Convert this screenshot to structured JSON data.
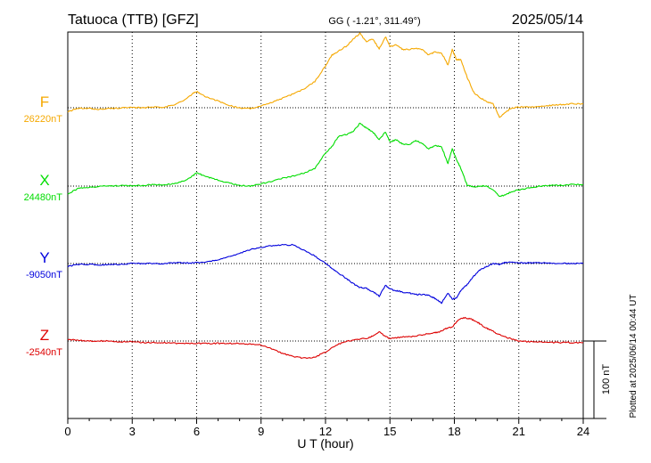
{
  "chart_data": {
    "type": "line",
    "title": "Tatuoca (TTB)  [GFZ]",
    "coords": "GG ( -1.21°, 311.49°)",
    "date": "2025/05/14",
    "xlabel": "U T (hour)",
    "xlim": [
      0,
      24
    ],
    "xticks": [
      "0",
      "3",
      "6",
      "9",
      "12",
      "15",
      "18",
      "21",
      "24"
    ],
    "scale_bar_label": "100 nT",
    "scale_bar_nT": 100,
    "plotted_note": "Plotted at 2025/06/14 00:44 UT",
    "grid": "dotted",
    "series": [
      {
        "name": "F",
        "baseline_label": "26220nT",
        "baseline_nT": 26220,
        "color": "#f5a800",
        "t": [
          0,
          0.5,
          1,
          1.5,
          2,
          2.5,
          3,
          3.5,
          4,
          4.5,
          5,
          5.5,
          5.8,
          6,
          6.3,
          6.6,
          7,
          7.5,
          8,
          8.5,
          9,
          9.5,
          10,
          10.5,
          11,
          11.5,
          12,
          12.3,
          12.6,
          13,
          13.3,
          13.6,
          13.9,
          14.2,
          14.5,
          14.8,
          15,
          15.3,
          15.6,
          15.9,
          16.2,
          16.5,
          16.8,
          17.1,
          17.4,
          17.7,
          17.9,
          18.1,
          18.3,
          18.6,
          18.9,
          19.2,
          19.5,
          19.8,
          20.1,
          20.3,
          20.6,
          21,
          21.5,
          22,
          22.5,
          23,
          23.5,
          24
        ],
        "dev": [
          -5,
          -1,
          -1,
          -2,
          -1,
          0,
          0,
          0,
          1,
          1,
          4,
          11,
          18,
          21,
          16,
          12,
          9,
          3,
          0,
          -1,
          2,
          7,
          12,
          18,
          24,
          34,
          54,
          68,
          73,
          80,
          89,
          96,
          85,
          89,
          76,
          92,
          79,
          81,
          75,
          75,
          77,
          75,
          68,
          72,
          71,
          55,
          75,
          62,
          62,
          39,
          20,
          13,
          8,
          5,
          -12,
          -8,
          -1,
          1,
          1,
          2,
          3,
          4,
          5,
          5
        ]
      },
      {
        "name": "X",
        "baseline_label": "24480nT",
        "baseline_nT": 24480,
        "color": "#00dd00",
        "t": [
          0,
          0.5,
          1,
          1.5,
          2,
          2.5,
          3,
          3.5,
          4,
          4.5,
          5,
          5.5,
          5.8,
          6,
          6.3,
          6.6,
          7,
          7.5,
          8,
          8.5,
          9,
          9.5,
          10,
          10.5,
          11,
          11.5,
          12,
          12.3,
          12.6,
          13,
          13.3,
          13.6,
          13.9,
          14.2,
          14.5,
          14.8,
          15,
          15.3,
          15.6,
          15.9,
          16.2,
          16.5,
          16.8,
          17.1,
          17.4,
          17.7,
          17.9,
          18.1,
          18.3,
          18.6,
          18.9,
          19.2,
          19.5,
          19.8,
          20.1,
          20.3,
          20.6,
          21,
          21.5,
          22,
          22.5,
          23,
          23.5,
          24
        ],
        "dev": [
          -10,
          -3,
          -2,
          0,
          0,
          1,
          0,
          1,
          2,
          2,
          3,
          8,
          13,
          17,
          14,
          11,
          8,
          4,
          1,
          0,
          3,
          6,
          10,
          13,
          17,
          23,
          43,
          51,
          64,
          67,
          71,
          81,
          75,
          70,
          60,
          70,
          57,
          60,
          54,
          53,
          59,
          55,
          48,
          52,
          51,
          29,
          48,
          34,
          23,
          1,
          -1,
          0,
          0,
          -5,
          -13,
          -12,
          -8,
          -5,
          -2,
          0,
          1,
          1,
          2,
          2
        ]
      },
      {
        "name": "Y",
        "baseline_label": "-9050nT",
        "baseline_nT": -9050,
        "color": "#0000dd",
        "t": [
          0,
          0.5,
          1,
          1.5,
          2,
          2.5,
          3,
          3.5,
          4,
          4.5,
          5,
          5.5,
          6,
          6.5,
          7,
          7.5,
          8,
          8.5,
          9,
          9.5,
          10,
          10.5,
          11,
          11.5,
          12,
          12.3,
          12.6,
          13,
          13.3,
          13.6,
          13.9,
          14.2,
          14.5,
          14.8,
          15,
          15.3,
          15.6,
          15.9,
          16.2,
          16.5,
          16.8,
          17.1,
          17.4,
          17.7,
          17.9,
          18.1,
          18.3,
          18.6,
          18.9,
          19.2,
          19.5,
          19.8,
          20.1,
          20.3,
          20.6,
          21,
          21.5,
          22,
          22.5,
          23,
          23.5,
          24
        ],
        "dev": [
          -4,
          -1,
          -1,
          -2,
          -1,
          -1,
          0,
          0,
          0,
          0,
          1,
          1,
          1,
          2,
          5,
          9,
          13,
          18,
          21,
          23,
          24,
          24,
          17,
          10,
          0,
          -6,
          -12,
          -20,
          -26,
          -31,
          -32,
          -36,
          -42,
          -28,
          -33,
          -35,
          -37,
          -38,
          -40,
          -40,
          -41,
          -45,
          -51,
          -38,
          -46,
          -44,
          -35,
          -27,
          -16,
          -8,
          -4,
          0,
          -1,
          1,
          2,
          1,
          1,
          1,
          0,
          0,
          0,
          0
        ]
      },
      {
        "name": "Z",
        "baseline_label": "-2540nT",
        "baseline_nT": -2540,
        "color": "#dd0000",
        "t": [
          0,
          0.5,
          1,
          1.5,
          2,
          2.5,
          3,
          3.5,
          4,
          4.5,
          5,
          5.5,
          6,
          6.5,
          7,
          7.5,
          8,
          8.5,
          9,
          9.5,
          10,
          10.5,
          11,
          11.5,
          12,
          12.5,
          13,
          13.5,
          14,
          14.2,
          14.5,
          14.8,
          15,
          15.5,
          16,
          16.5,
          17,
          17.3,
          17.6,
          17.9,
          18.2,
          18.5,
          18.8,
          19.1,
          19.4,
          19.7,
          20,
          20.5,
          21,
          21.5,
          22,
          22.5,
          23,
          23.5,
          24
        ],
        "dev": [
          2,
          1,
          0,
          0,
          0,
          -1,
          -1,
          -2,
          -2,
          -2,
          -3,
          -3,
          -3,
          -3,
          -3,
          -3,
          -3,
          -4,
          -5,
          -10,
          -16,
          -20,
          -22,
          -21,
          -14,
          -5,
          0,
          2,
          4,
          7,
          12,
          6,
          3,
          5,
          6,
          8,
          10,
          12,
          16,
          18,
          28,
          30,
          28,
          24,
          18,
          14,
          9,
          4,
          0,
          -1,
          -1,
          -2,
          -2,
          -2,
          -2
        ]
      }
    ]
  }
}
